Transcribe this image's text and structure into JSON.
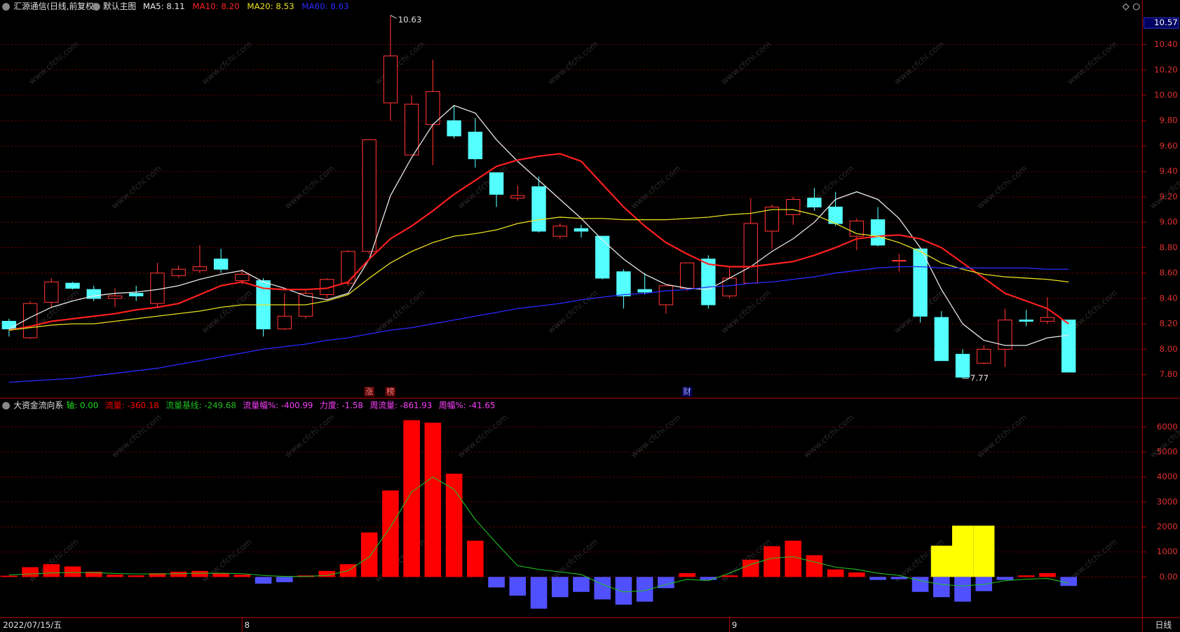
{
  "chart_data": [
    {
      "type": "candlestick",
      "title": "汇源通信(日线,前复权)",
      "subtitle": "默认主图",
      "categories": [
        "2022/07/15/五",
        null,
        null,
        null,
        null,
        null,
        null,
        null,
        null,
        null,
        null,
        "8",
        null,
        null,
        null,
        null,
        null,
        null,
        null,
        null,
        null,
        null,
        null,
        null,
        null,
        null,
        null,
        null,
        null,
        null,
        null,
        null,
        null,
        null,
        "9",
        null,
        null,
        null,
        null,
        null,
        null,
        null,
        null,
        null,
        null,
        null,
        null,
        null,
        null,
        null,
        null
      ],
      "period_label": "日线",
      "open": [
        8.22,
        8.09,
        8.37,
        8.52,
        8.47,
        8.4,
        8.44,
        8.36,
        8.58,
        8.62,
        8.71,
        8.54,
        8.54,
        8.16,
        8.26,
        8.43,
        8.52,
        8.77,
        9.94,
        9.53,
        9.77,
        9.8,
        9.71,
        9.39,
        9.19,
        9.28,
        8.89,
        8.95,
        8.89,
        8.61,
        8.47,
        8.35,
        8.48,
        8.71,
        8.42,
        8.52,
        8.93,
        9.06,
        9.19,
        9.12,
        8.89,
        9.02,
        8.7,
        8.79,
        8.25,
        7.96,
        7.89,
        8.0,
        8.23,
        8.22,
        8.23
      ],
      "high": [
        8.24,
        8.38,
        8.56,
        8.53,
        8.5,
        8.48,
        8.5,
        8.68,
        8.66,
        8.82,
        8.79,
        8.63,
        8.56,
        8.44,
        8.46,
        8.56,
        8.78,
        9.65,
        10.63,
        10.0,
        10.28,
        9.92,
        9.82,
        9.39,
        9.29,
        9.36,
        8.99,
        8.98,
        8.89,
        8.63,
        8.6,
        8.5,
        8.68,
        8.74,
        8.64,
        9.19,
        9.14,
        9.2,
        9.27,
        9.24,
        9.03,
        9.12,
        8.75,
        8.8,
        8.3,
        8.0,
        8.03,
        8.32,
        8.31,
        8.41,
        8.23
      ],
      "low": [
        8.1,
        8.08,
        8.33,
        8.47,
        8.38,
        8.33,
        8.38,
        8.33,
        8.56,
        8.6,
        8.6,
        8.51,
        8.1,
        8.15,
        8.24,
        8.4,
        8.5,
        8.75,
        9.8,
        9.53,
        9.45,
        9.66,
        9.43,
        9.12,
        9.17,
        8.92,
        8.87,
        8.88,
        8.55,
        8.32,
        8.43,
        8.28,
        8.46,
        8.32,
        8.4,
        8.52,
        8.79,
        8.98,
        9.09,
        8.97,
        8.78,
        8.81,
        8.61,
        8.21,
        7.91,
        7.77,
        7.88,
        7.86,
        8.18,
        8.2,
        7.82
      ],
      "close": [
        8.16,
        8.36,
        8.53,
        8.48,
        8.4,
        8.42,
        8.42,
        8.6,
        8.63,
        8.65,
        8.63,
        8.59,
        8.16,
        8.26,
        8.44,
        8.55,
        8.77,
        9.65,
        10.31,
        9.93,
        10.03,
        9.68,
        9.5,
        9.22,
        9.21,
        8.93,
        8.97,
        8.93,
        8.56,
        8.42,
        8.45,
        8.5,
        8.68,
        8.35,
        8.56,
        8.99,
        9.12,
        9.18,
        9.12,
        8.99,
        9.01,
        8.82,
        8.7,
        8.26,
        7.91,
        7.78,
        8.0,
        8.23,
        8.22,
        8.25,
        7.82
      ],
      "up_color": "#ff3232",
      "down_color": "#54ffff",
      "series": [
        {
          "name": "MA5: 8.11",
          "color": "#e8e8e8",
          "values": [
            8.16,
            8.25,
            8.33,
            8.38,
            8.42,
            8.44,
            8.45,
            8.47,
            8.5,
            8.55,
            8.59,
            8.62,
            8.53,
            8.48,
            8.42,
            8.39,
            8.44,
            8.71,
            9.21,
            9.51,
            9.77,
            9.92,
            9.86,
            9.65,
            9.48,
            9.33,
            9.18,
            9.03,
            8.86,
            8.71,
            8.59,
            8.51,
            8.48,
            8.47,
            8.56,
            8.65,
            8.77,
            8.87,
            9.0,
            9.18,
            9.24,
            9.18,
            9.03,
            8.8,
            8.47,
            8.2,
            8.07,
            8.03,
            8.03,
            8.09,
            8.11
          ]
        },
        {
          "name": "MA10: 8.20",
          "color": "#ff2020",
          "values": [
            8.15,
            8.18,
            8.22,
            8.24,
            8.26,
            8.28,
            8.31,
            8.33,
            8.36,
            8.43,
            8.5,
            8.53,
            8.48,
            8.47,
            8.47,
            8.48,
            8.53,
            8.71,
            8.87,
            8.97,
            9.09,
            9.22,
            9.33,
            9.44,
            9.49,
            9.52,
            9.54,
            9.48,
            9.3,
            9.12,
            8.97,
            8.84,
            8.75,
            8.67,
            8.65,
            8.65,
            8.67,
            8.69,
            8.74,
            8.8,
            8.87,
            8.89,
            8.9,
            8.87,
            8.8,
            8.68,
            8.56,
            8.44,
            8.38,
            8.32,
            8.2
          ]
        },
        {
          "name": "MA20: 8.53",
          "color": "#e8e020",
          "values": [
            8.15,
            8.17,
            8.19,
            8.2,
            8.2,
            8.22,
            8.24,
            8.26,
            8.28,
            8.3,
            8.33,
            8.35,
            8.35,
            8.35,
            8.35,
            8.38,
            8.43,
            8.56,
            8.68,
            8.77,
            8.84,
            8.89,
            8.91,
            8.94,
            8.99,
            9.02,
            9.04,
            9.03,
            9.03,
            9.02,
            9.02,
            9.02,
            9.03,
            9.04,
            9.06,
            9.07,
            9.1,
            9.1,
            9.06,
            8.99,
            8.91,
            8.89,
            8.84,
            8.77,
            8.68,
            8.63,
            8.59,
            8.57,
            8.56,
            8.55,
            8.53
          ]
        },
        {
          "name": "MA60: 8.63",
          "color": "#2a2aff",
          "values": [
            7.74,
            7.75,
            7.76,
            7.77,
            7.79,
            7.81,
            7.83,
            7.85,
            7.88,
            7.91,
            7.94,
            7.97,
            8.0,
            8.02,
            8.04,
            8.07,
            8.09,
            8.12,
            8.15,
            8.17,
            8.2,
            8.23,
            8.26,
            8.29,
            8.32,
            8.34,
            8.36,
            8.39,
            8.41,
            8.43,
            8.44,
            8.46,
            8.47,
            8.49,
            8.5,
            8.52,
            8.53,
            8.55,
            8.57,
            8.6,
            8.62,
            8.64,
            8.65,
            8.65,
            8.64,
            8.64,
            8.64,
            8.64,
            8.64,
            8.63,
            8.63
          ]
        }
      ],
      "ylim": [
        7.62,
        10.62
      ],
      "yticks": [
        {
          "value": 7.8,
          "label": "7.80"
        },
        {
          "value": 8.0,
          "label": "8.00"
        },
        {
          "value": 8.2,
          "label": "8.20"
        },
        {
          "value": 8.4,
          "label": "8.40"
        },
        {
          "value": 8.6,
          "label": "8.60"
        },
        {
          "value": 8.8,
          "label": "8.80"
        },
        {
          "value": 9.0,
          "label": "9.00"
        },
        {
          "value": 9.2,
          "label": "9.20"
        },
        {
          "value": 9.4,
          "label": "9.40"
        },
        {
          "value": 9.6,
          "label": "9.60"
        },
        {
          "value": 9.8,
          "label": "9.80"
        },
        {
          "value": 10.0,
          "label": "10.00"
        },
        {
          "value": 10.2,
          "label": "10.20"
        },
        {
          "value": 10.4,
          "label": "10.40"
        }
      ],
      "axis_top": {
        "value": 10.57,
        "label": "10.57"
      },
      "grid": true,
      "annotations": [
        {
          "index": 18,
          "value": 10.63,
          "label": "10.63"
        },
        {
          "index": 45,
          "value": 7.77,
          "label": "7.77"
        }
      ],
      "events": [
        {
          "index": 17,
          "label": "涨"
        },
        {
          "index": 18,
          "label": "榜"
        },
        {
          "index": 32,
          "label": "财"
        }
      ],
      "watermark": "www.cfchi.com"
    },
    {
      "type": "bar",
      "title": "大资金流向系",
      "legend_extra": [
        {
          "text": "轴: 0.00",
          "color": "#20e020"
        },
        {
          "text": "流量幅%: -400.99",
          "color": "#ff40ff"
        },
        {
          "text": "力度: -1.58",
          "color": "#ff40ff"
        },
        {
          "text": "周流量: -861.93",
          "color": "#ff40ff"
        },
        {
          "text": "周幅%: -41.65",
          "color": "#ff40ff"
        }
      ],
      "series": [
        {
          "name": "流量: -360.18",
          "color": "#ff0000",
          "negative_color": "#5050ff",
          "values": [
            50,
            390,
            510,
            420,
            210,
            90,
            60,
            150,
            210,
            240,
            150,
            90,
            -270,
            -210,
            60,
            240,
            510,
            1780,
            3460,
            6270,
            6170,
            4130,
            1450,
            -420,
            -750,
            -1270,
            -810,
            -600,
            -900,
            -1110,
            -990,
            -450,
            150,
            -120,
            60,
            690,
            1230,
            1450,
            870,
            300,
            180,
            -120,
            -90,
            -600,
            -810,
            -990,
            -570,
            -120,
            60,
            150,
            -360.18
          ]
        },
        {
          "name": "流量基线: -249.68",
          "type": "line",
          "color": "#20c020",
          "values": [
            80,
            120,
            160,
            180,
            170,
            140,
            120,
            120,
            130,
            150,
            150,
            130,
            60,
            20,
            20,
            60,
            250,
            800,
            2000,
            3400,
            4000,
            3500,
            2300,
            1350,
            450,
            300,
            200,
            100,
            -300,
            -600,
            -550,
            -300,
            -100,
            -150,
            150,
            500,
            750,
            810,
            600,
            390,
            300,
            150,
            60,
            -150,
            -300,
            -360,
            -300,
            -150,
            -90,
            -60,
            -249.68
          ]
        },
        {
          "type": "highlight",
          "color": "#ffff00",
          "values": [
            null,
            null,
            null,
            null,
            null,
            null,
            null,
            null,
            null,
            null,
            null,
            null,
            null,
            null,
            null,
            null,
            null,
            null,
            null,
            null,
            null,
            null,
            null,
            null,
            null,
            null,
            null,
            null,
            null,
            null,
            null,
            null,
            null,
            null,
            null,
            null,
            null,
            null,
            null,
            null,
            null,
            null,
            null,
            null,
            1250,
            2050,
            2050,
            null,
            null,
            null,
            null
          ]
        }
      ],
      "ylim": [
        -1600,
        7000
      ],
      "yticks": [
        {
          "value": 0,
          "label": "0.00"
        },
        1000,
        2000,
        3000,
        4000,
        5000,
        6000
      ],
      "grid": true
    }
  ]
}
